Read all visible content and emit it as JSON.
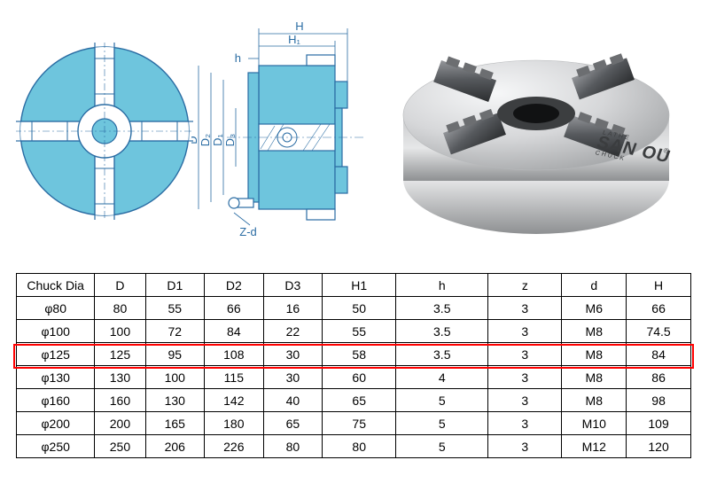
{
  "diagram": {
    "front_view": {
      "stroke_color": "#2a6ca3",
      "fill_color": "#6ec5dd",
      "line_width": 1.2,
      "outer_r": 95,
      "inner_r": 30,
      "jaw_w": 22
    },
    "side_view": {
      "stroke_color": "#2a6ca3",
      "fill_color": "#6ec5dd",
      "line_width": 1.2,
      "labels": {
        "D": "D",
        "D1": "D₁",
        "D2": "D₂",
        "D3": "D₃",
        "H": "H",
        "H1": "H₁",
        "h": "h",
        "Zd": "Z-d"
      }
    },
    "photo": {
      "body_color": "#d8d9da",
      "body_highlight": "#f2f3f4",
      "body_shadow": "#9b9d9e",
      "jaw_color": "#58595b",
      "jaw_highlight": "#888a8c",
      "jaw_shadow": "#2f3031",
      "brand_main": "SAN OU",
      "brand_sub1": "LATHE",
      "brand_sub2": "CHUCK",
      "brand_mark": "®"
    }
  },
  "table": {
    "columns": [
      "Chuck Dia",
      "D",
      "D1",
      "D2",
      "D3",
      "H1",
      "h",
      "z",
      "d",
      "H"
    ],
    "rows": [
      [
        "φ80",
        "80",
        "55",
        "66",
        "16",
        "50",
        "3.5",
        "3",
        "M6",
        "66"
      ],
      [
        "φ100",
        "100",
        "72",
        "84",
        "22",
        "55",
        "3.5",
        "3",
        "M8",
        "74.5"
      ],
      [
        "φ125",
        "125",
        "95",
        "108",
        "30",
        "58",
        "3.5",
        "3",
        "M8",
        "84"
      ],
      [
        "φ130",
        "130",
        "100",
        "115",
        "30",
        "60",
        "4",
        "3",
        "M8",
        "86"
      ],
      [
        "φ160",
        "160",
        "130",
        "142",
        "40",
        "65",
        "5",
        "3",
        "M8",
        "98"
      ],
      [
        "φ200",
        "200",
        "165",
        "180",
        "65",
        "75",
        "5",
        "3",
        "M10",
        "109"
      ],
      [
        "φ250",
        "250",
        "206",
        "226",
        "80",
        "80",
        "5",
        "3",
        "M12",
        "120"
      ]
    ],
    "highlight_row_index": 2,
    "highlight_color": "#ff0000",
    "border_color": "#000000",
    "font_size": 14
  }
}
